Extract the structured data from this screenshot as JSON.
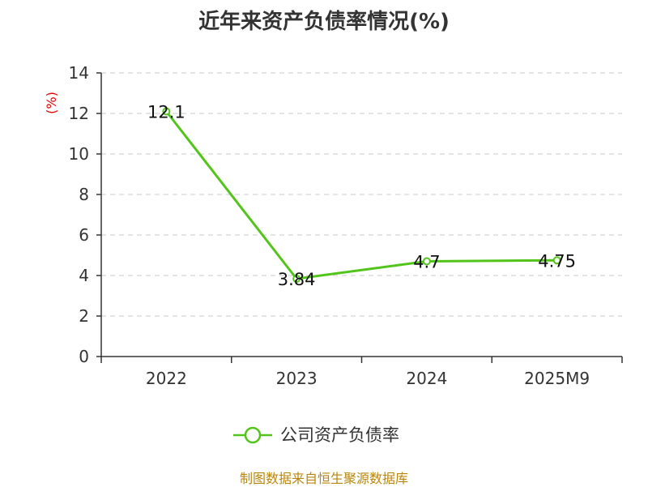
{
  "chart_data": {
    "type": "line",
    "title": "近年来资产负债率情况(%)",
    "categories": [
      "2022",
      "2023",
      "2024",
      "2025M9"
    ],
    "series": [
      {
        "name": "公司资产负债率",
        "values": [
          12.1,
          3.84,
          4.7,
          4.75
        ],
        "color": "#52c41a"
      }
    ],
    "value_labels": [
      "12.1",
      "3.84",
      "4.7",
      "4.75"
    ],
    "ylabel": "(%)",
    "xlabel": "",
    "ylim": [
      0,
      14
    ],
    "yticks": [
      0,
      2,
      4,
      6,
      8,
      10,
      12,
      14
    ],
    "grid": true,
    "legend": "bottom-center"
  },
  "source_note": "制图数据来自恒生聚源数据库"
}
